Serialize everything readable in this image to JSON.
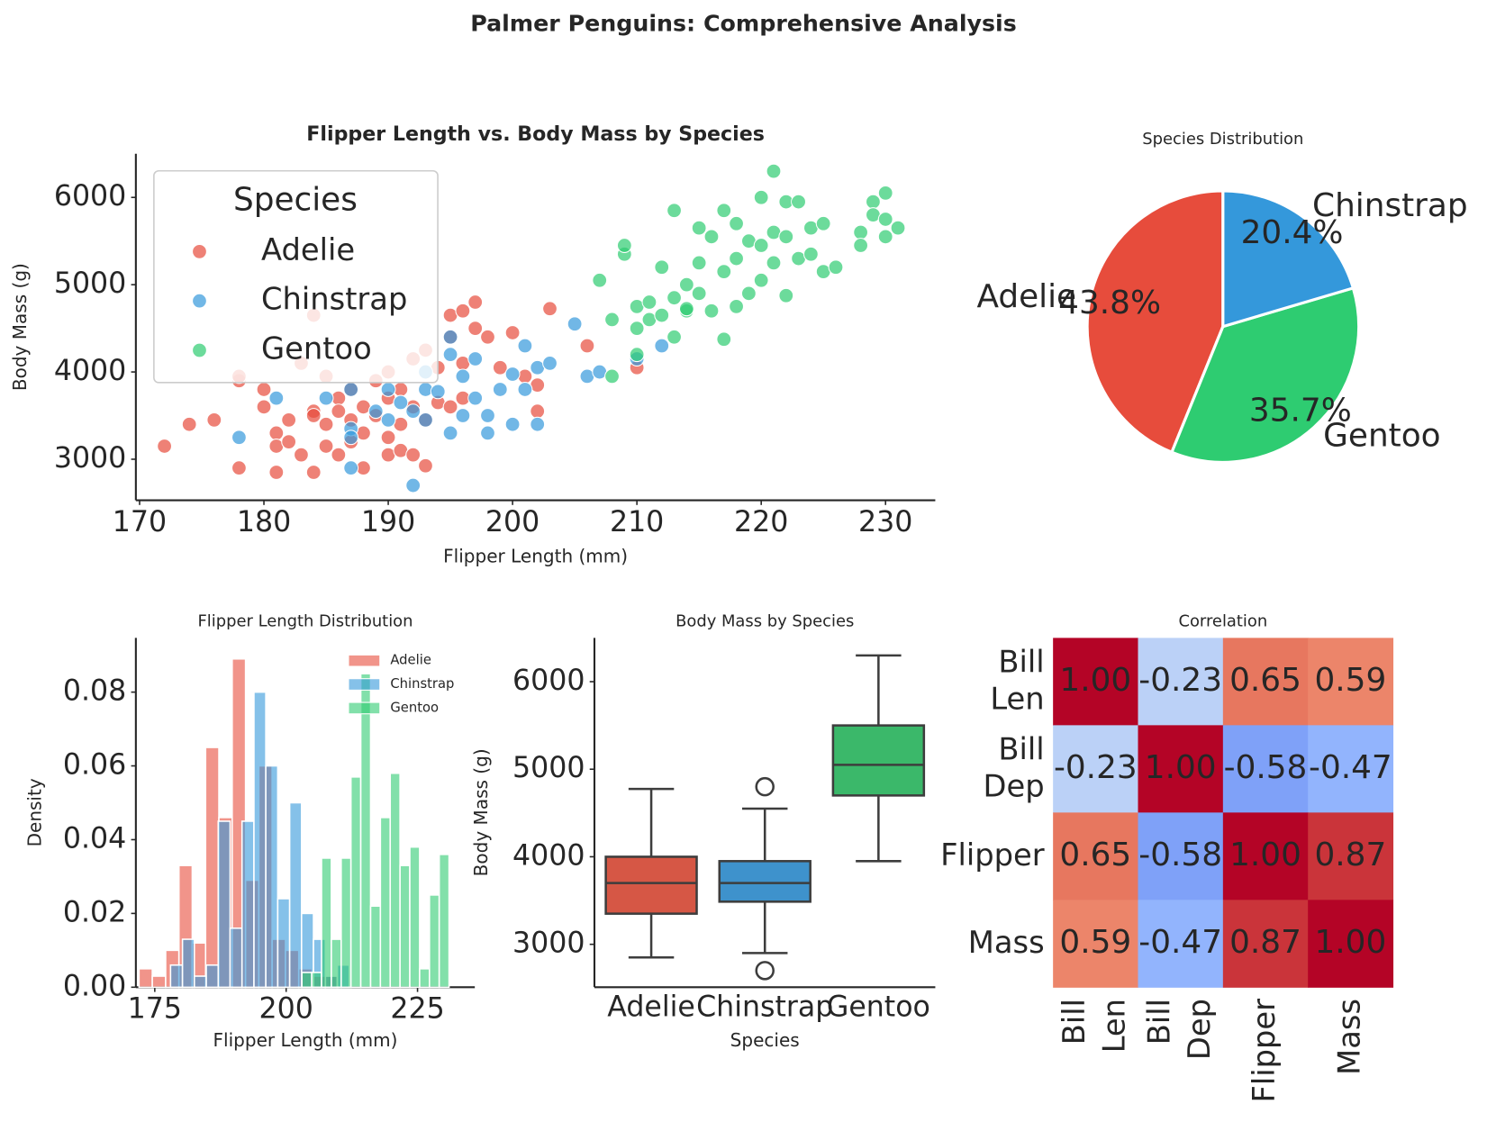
{
  "title": "Palmer Penguins: Comprehensive Analysis",
  "chart_data": [
    {
      "type": "scatter",
      "title": "Flipper Length vs. Body Mass by Species",
      "x_label": "Flipper Length (mm)",
      "y_label": "Body Mass (g)",
      "xlim": [
        169.7,
        234
      ],
      "ylim": [
        2530,
        6500
      ],
      "xticks": [
        170,
        180,
        190,
        200,
        210,
        220,
        230
      ],
      "yticks": [
        3000,
        4000,
        5000,
        6000
      ],
      "legend_title": "Species",
      "legend_position": "upper left",
      "series": [
        {
          "name": "Adelie",
          "color": "#e74c3c",
          "x": [
            172,
            174,
            176,
            178,
            178,
            180,
            180,
            181,
            181,
            181,
            182,
            182,
            183,
            184,
            184,
            184,
            185,
            185,
            185,
            186,
            186,
            186,
            187,
            187,
            187,
            188,
            188,
            188,
            189,
            189,
            190,
            190,
            190,
            190,
            191,
            191,
            191,
            192,
            192,
            192,
            193,
            193,
            193,
            194,
            194,
            195,
            195,
            195,
            196,
            196,
            196,
            197,
            197,
            198,
            199,
            200,
            201,
            202,
            202,
            203,
            206,
            210,
            184,
            178,
            183
          ],
          "values": [
            3150,
            3400,
            3450,
            3900,
            2900,
            3800,
            3600,
            3300,
            3150,
            2850,
            3450,
            3200,
            3050,
            3550,
            3500,
            2850,
            3950,
            3400,
            3150,
            3700,
            3550,
            3050,
            3800,
            3450,
            3200,
            3600,
            3300,
            2900,
            3900,
            3500,
            4000,
            3700,
            3250,
            3050,
            3800,
            3400,
            3100,
            4150,
            3600,
            3050,
            4250,
            3450,
            2925,
            4050,
            3650,
            4650,
            4400,
            3600,
            4100,
            3700,
            4700,
            4800,
            4500,
            4400,
            4050,
            4450,
            3950,
            3850,
            3550,
            4725,
            4300,
            4050,
            4650,
            3950,
            4100
          ]
        },
        {
          "name": "Chinstrap",
          "color": "#3498db",
          "x": [
            178,
            181,
            185,
            187,
            187,
            187,
            189,
            190,
            190,
            191,
            192,
            192,
            193,
            193,
            194,
            195,
            195,
            196,
            196,
            197,
            197,
            198,
            198,
            199,
            200,
            200,
            201,
            201,
            202,
            202,
            203,
            205,
            206,
            207,
            210,
            212,
            193,
            195,
            187
          ],
          "values": [
            3250,
            3700,
            3700,
            3350,
            3250,
            2900,
            3550,
            3800,
            3450,
            3650,
            3550,
            2700,
            3800,
            3450,
            3775,
            4400,
            3300,
            3950,
            3500,
            4150,
            3700,
            3500,
            3300,
            3800,
            3400,
            3975,
            4300,
            3800,
            4050,
            3400,
            4100,
            4550,
            3950,
            4000,
            4150,
            4300,
            4000,
            4200,
            3800
          ]
        },
        {
          "name": "Gentoo",
          "color": "#2ecc71",
          "x": [
            207,
            208,
            208,
            209,
            209,
            210,
            210,
            210,
            211,
            211,
            212,
            212,
            213,
            213,
            213,
            214,
            214,
            215,
            215,
            215,
            216,
            216,
            217,
            217,
            217,
            218,
            218,
            218,
            219,
            219,
            220,
            220,
            220,
            221,
            221,
            221,
            222,
            222,
            222,
            223,
            223,
            224,
            224,
            225,
            225,
            226,
            228,
            228,
            229,
            229,
            230,
            230,
            230,
            231,
            214
          ],
          "values": [
            5050,
            4600,
            3950,
            5350,
            5450,
            4750,
            4500,
            4200,
            4800,
            4600,
            4650,
            5200,
            5850,
            4400,
            4850,
            4700,
            5000,
            5650,
            5250,
            4900,
            5550,
            4700,
            5850,
            5150,
            4375,
            5700,
            5300,
            4750,
            5500,
            4900,
            6000,
            5450,
            5050,
            6300,
            5600,
            5250,
            5950,
            5550,
            4875,
            5950,
            5300,
            5650,
            5350,
            5700,
            5150,
            5200,
            5600,
            5450,
            5950,
            5800,
            6050,
            5750,
            5550,
            5650,
            4725
          ]
        }
      ]
    },
    {
      "type": "pie",
      "title": "Species Distribution",
      "categories": [
        "Adelie",
        "Gentoo",
        "Chinstrap"
      ],
      "values": [
        43.8,
        35.7,
        20.4
      ],
      "value_labels": [
        "43.8%",
        "35.7%",
        "20.4%"
      ],
      "colors": [
        "#e74c3c",
        "#2ecc71",
        "#3498db"
      ],
      "startangle": 90
    },
    {
      "type": "histogram",
      "title": "Flipper Length Distribution",
      "x_label": "Flipper Length (mm)",
      "y_label": "Density",
      "xlim": [
        171.4,
        235.9
      ],
      "ylim": [
        0,
        0.0947
      ],
      "xticks": [
        175,
        200,
        225
      ],
      "yticks": [
        {
          "value": 0,
          "label": "0.00"
        },
        0.02,
        0.04,
        0.06,
        0.08
      ],
      "legend_position": "upper right",
      "series": [
        {
          "name": "Adelie",
          "color": "#e74c3c",
          "bins": [
            172,
            174.53,
            177.07,
            179.6,
            182.13,
            184.67,
            187.2,
            189.73,
            192.27,
            194.8,
            197.33,
            199.87,
            202.4,
            204.93,
            207.47,
            210
          ],
          "values": [
            0.005,
            0.003,
            0.01,
            0.033,
            0.012,
            0.065,
            0.046,
            0.089,
            0.029,
            0.06,
            0.013,
            0.01,
            0.005,
            0.003,
            0.003
          ]
        },
        {
          "name": "Chinstrap",
          "color": "#3498db",
          "bins": [
            178,
            180.27,
            182.53,
            184.8,
            187.07,
            189.33,
            191.6,
            193.87,
            196.13,
            198.4,
            200.67,
            202.93,
            205.2,
            207.47,
            209.73,
            212
          ],
          "values": [
            0.006,
            0.013,
            0.003,
            0.006,
            0.045,
            0.016,
            0.045,
            0.08,
            0.06,
            0.024,
            0.05,
            0.02,
            0.013,
            0.003,
            0.006
          ]
        },
        {
          "name": "Gentoo",
          "color": "#2ecc71",
          "bins": [
            203,
            204.87,
            206.73,
            208.6,
            210.47,
            212.33,
            214.2,
            216.07,
            217.93,
            219.8,
            221.67,
            223.53,
            225.4,
            227.27,
            229.13,
            231
          ],
          "values": [
            0.004,
            0.004,
            0.035,
            0.013,
            0.035,
            0.057,
            0.085,
            0.022,
            0.046,
            0.058,
            0.033,
            0.038,
            0.005,
            0.025,
            0.036
          ]
        }
      ]
    },
    {
      "type": "box",
      "title": "Body Mass by Species",
      "x_label": "Species",
      "y_label": "Body Mass (g)",
      "categories": [
        "Adelie",
        "Chinstrap",
        "Gentoo"
      ],
      "colors": [
        "#d65745",
        "#3e92cc",
        "#3bb86a"
      ],
      "ylim": [
        2510,
        6500
      ],
      "yticks": [
        3000,
        4000,
        5000,
        6000
      ],
      "boxes": [
        {
          "whisker_low": 2850,
          "q1": 3350,
          "median": 3700,
          "q3": 4000,
          "whisker_high": 4775,
          "outliers": []
        },
        {
          "whisker_low": 2900,
          "q1": 3487,
          "median": 3700,
          "q3": 3950,
          "whisker_high": 4550,
          "outliers": [
            4800,
            2700
          ]
        },
        {
          "whisker_low": 3950,
          "q1": 4700,
          "median": 5050,
          "q3": 5500,
          "whisker_high": 6300,
          "outliers": []
        }
      ]
    },
    {
      "type": "heatmap",
      "title": "Correlation",
      "labels": [
        "Bill\nLen",
        "Bill\nDep",
        "Flipper",
        "Mass"
      ],
      "colormap": "coolwarm",
      "vmin": -1,
      "vmax": 1,
      "values": [
        [
          1,
          -0.23,
          0.65,
          0.59
        ],
        [
          -0.23,
          1,
          -0.58,
          -0.47
        ],
        [
          0.65,
          -0.58,
          1,
          0.87
        ],
        [
          0.59,
          -0.47,
          0.87,
          1
        ]
      ],
      "value_labels": [
        [
          "1.00",
          "-0.23",
          "0.65",
          "0.59"
        ],
        [
          "-0.23",
          "1.00",
          "-0.58",
          "-0.47"
        ],
        [
          "0.65",
          "-0.58",
          "1.00",
          "0.87"
        ],
        [
          "0.59",
          "-0.47",
          "0.87",
          "1.00"
        ]
      ]
    }
  ]
}
